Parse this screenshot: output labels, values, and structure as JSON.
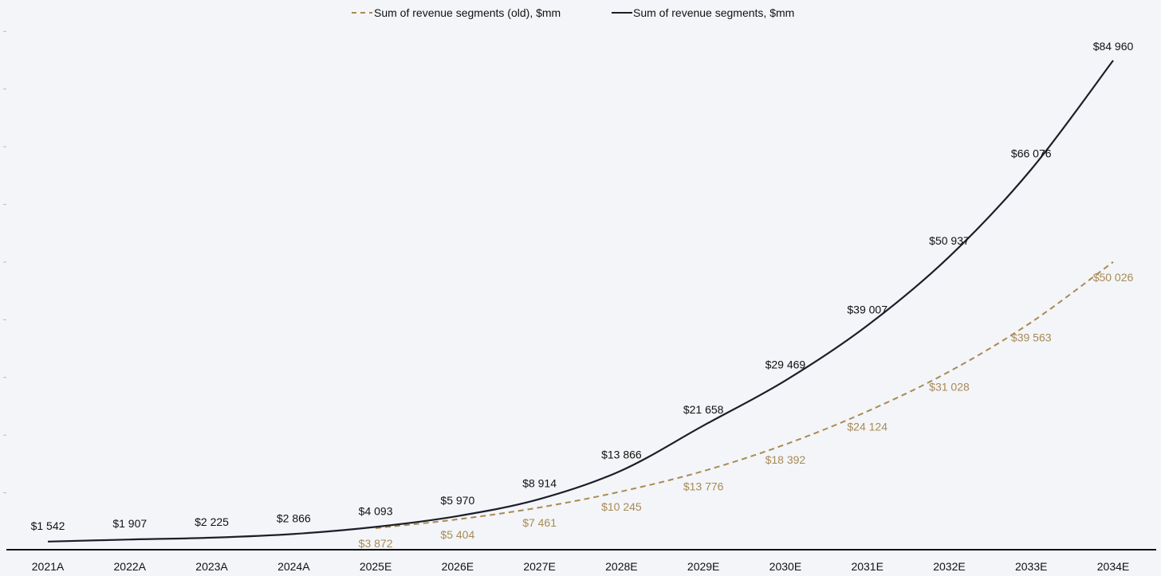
{
  "chart_data": {
    "type": "line",
    "title": "",
    "xlabel": "",
    "ylabel": "",
    "ylim": [
      0,
      90000
    ],
    "grid": false,
    "legend_position": "top-center",
    "categories": [
      "2021A",
      "2022A",
      "2023A",
      "2024A",
      "2025E",
      "2026E",
      "2027E",
      "2028E",
      "2029E",
      "2030E",
      "2031E",
      "2032E",
      "2033E",
      "2034E"
    ],
    "series": [
      {
        "name": "Sum of revenue segments (old), $mm",
        "color": "#a88a55",
        "style": "dashed",
        "values": [
          null,
          null,
          null,
          null,
          3872,
          5404,
          7461,
          10245,
          13776,
          18392,
          24124,
          31028,
          39563,
          50026
        ],
        "labels": [
          null,
          null,
          null,
          null,
          "$3 872",
          "$5 404",
          "$7 461",
          "$10 245",
          "$13 776",
          "$18 392",
          "$24 124",
          "$31 028",
          "$39 563",
          "$50 026"
        ]
      },
      {
        "name": "Sum of revenue segments, $mm",
        "color": "#1c1f2a",
        "style": "solid",
        "values": [
          1542,
          1907,
          2225,
          2866,
          4093,
          5970,
          8914,
          13866,
          21658,
          29469,
          39007,
          50937,
          66076,
          84960
        ],
        "labels": [
          "$1 542",
          "$1 907",
          "$2 225",
          "$2 866",
          "$4 093",
          "$5 970",
          "$8 914",
          "$13 866",
          "$21 658",
          "$29 469",
          "$39 007",
          "$50 937",
          "$66 076",
          "$84 960"
        ]
      }
    ]
  }
}
